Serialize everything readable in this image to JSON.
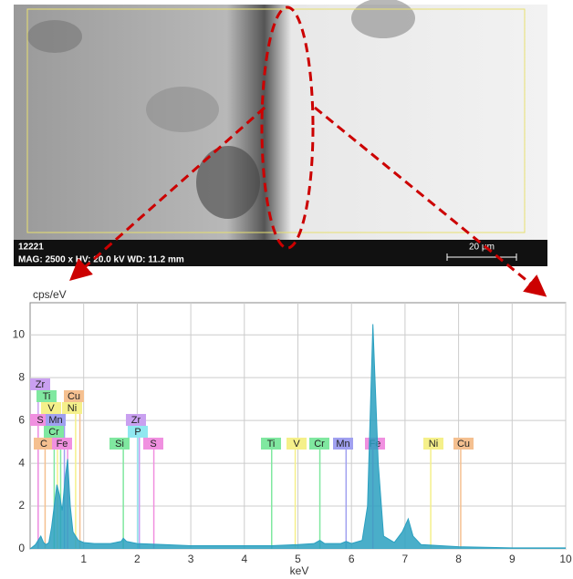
{
  "sem": {
    "scan_id": "12221",
    "info": "MAG: 2500 x HV: 20.0 kV WD: 11.2 mm",
    "scale": "20 µm"
  },
  "chart_data": {
    "type": "area",
    "y_label": "cps/eV",
    "x_label": "keV",
    "color": "#2aa0c0",
    "xlim": [
      0,
      10
    ],
    "ylim": [
      0,
      11.5
    ],
    "xticks": [
      1,
      2,
      3,
      4,
      5,
      6,
      7,
      8,
      9,
      10
    ],
    "yticks": [
      0,
      2,
      4,
      6,
      8,
      10
    ],
    "grid": true,
    "x": [
      0,
      0.1,
      0.2,
      0.25,
      0.3,
      0.35,
      0.4,
      0.45,
      0.5,
      0.55,
      0.6,
      0.65,
      0.7,
      0.75,
      0.8,
      0.9,
      1.0,
      1.2,
      1.5,
      1.7,
      1.74,
      1.8,
      2.0,
      2.5,
      3,
      3.5,
      4,
      4.5,
      5,
      5.3,
      5.41,
      5.5,
      5.8,
      5.9,
      6.0,
      6.2,
      6.3,
      6.4,
      6.5,
      6.6,
      6.8,
      6.95,
      7.06,
      7.15,
      7.3,
      8,
      9,
      10
    ],
    "values": [
      0,
      0.2,
      0.6,
      0.3,
      0.2,
      0.3,
      1.0,
      2.0,
      3.0,
      2.5,
      1.8,
      3.2,
      4.2,
      2.0,
      0.8,
      0.4,
      0.3,
      0.25,
      0.25,
      0.35,
      0.5,
      0.35,
      0.25,
      0.2,
      0.15,
      0.15,
      0.15,
      0.15,
      0.2,
      0.25,
      0.4,
      0.25,
      0.25,
      0.35,
      0.25,
      0.4,
      2.0,
      10.5,
      4.0,
      0.6,
      0.3,
      0.8,
      1.4,
      0.6,
      0.2,
      0.1,
      0.05,
      0.05
    ],
    "elements": [
      {
        "label": "Zr",
        "energy": 0.15,
        "color": "#c9a0f0"
      },
      {
        "label": "Ti",
        "energy": 0.45,
        "color": "#80e8a0"
      },
      {
        "label": "Cu",
        "energy": 0.93,
        "color": "#f5c090"
      },
      {
        "label": "V",
        "energy": 0.51,
        "color": "#f5f08a"
      },
      {
        "label": "Ni",
        "energy": 0.85,
        "color": "#f5f08a"
      },
      {
        "label": "S",
        "energy": 0.15,
        "color": "#f090e0"
      },
      {
        "label": "Mn",
        "energy": 0.64,
        "color": "#a0a0f0"
      },
      {
        "label": "Cr",
        "energy": 0.57,
        "color": "#80e8a0"
      },
      {
        "label": "C",
        "energy": 0.28,
        "color": "#f5c090"
      },
      {
        "label": "Fe",
        "energy": 0.7,
        "color": "#f090e0"
      },
      {
        "label": "Zr",
        "energy": 2.04,
        "color": "#c9a0f0"
      },
      {
        "label": "P",
        "energy": 2.01,
        "color": "#90e8f0"
      },
      {
        "label": "Si",
        "energy": 1.74,
        "color": "#80e8a0"
      },
      {
        "label": "S",
        "energy": 2.31,
        "color": "#f090e0"
      },
      {
        "label": "Ti",
        "energy": 4.51,
        "color": "#80e8a0"
      },
      {
        "label": "V",
        "energy": 4.95,
        "color": "#f5f08a"
      },
      {
        "label": "Cr",
        "energy": 5.41,
        "color": "#80e8a0"
      },
      {
        "label": "Mn",
        "energy": 5.9,
        "color": "#a0a0f0"
      },
      {
        "label": "Fe",
        "energy": 6.4,
        "color": "#f090e0"
      },
      {
        "label": "Ni",
        "energy": 7.48,
        "color": "#f5f08a"
      },
      {
        "label": "Cu",
        "energy": 8.04,
        "color": "#f5c090"
      }
    ]
  }
}
